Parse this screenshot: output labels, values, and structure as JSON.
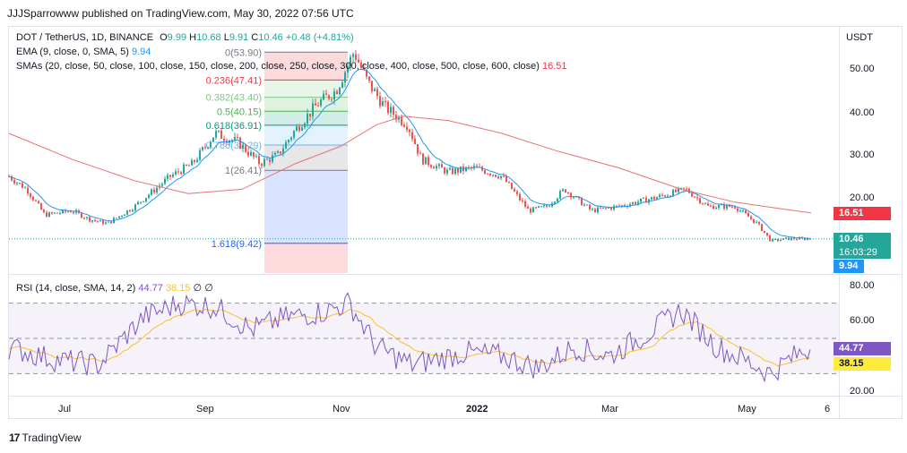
{
  "header": {
    "title": "JJJSparrowww published on TradingView.com, May 30, 2022 07:56 UTC"
  },
  "legend": {
    "symbol": "DOT / TetherUS, 1D, BINANCE",
    "o_label": "O",
    "o": "9.99",
    "h_label": "H",
    "h": "10.68",
    "l_label": "L",
    "l": "9.91",
    "c_label": "C",
    "c": "10.46",
    "chg": "+0.48 (+4.81%)",
    "ema_label": "EMA (9, close, 0, SMA, 5)",
    "ema_val": "9.94",
    "sma_label": "SMAs (20, close, 50, close, 100, close, 150, close, 200, close, 250, close, 300, close, 400, close, 500, close, 600, close)",
    "sma_val": "16.51",
    "rsi_label": "RSI (14, close, SMA, 14, 2)",
    "rsi_val": "44.77",
    "rsi_sma": "38.15",
    "rsi_z1": "∅",
    "rsi_z2": "∅"
  },
  "axis": {
    "currency": "USDT",
    "price_ticks": [
      "50.00",
      "40.00",
      "30.00",
      "20.00"
    ],
    "rsi_ticks": [
      "80.00",
      "60.00",
      "20.00"
    ],
    "time_ticks": [
      "Jul",
      "Sep",
      "Nov",
      "2022",
      "Mar",
      "May",
      "6"
    ]
  },
  "tags": {
    "sma": "16.51",
    "price": "10.46",
    "countdown": "16:03:29",
    "ema": "9.94",
    "rsi": "44.77",
    "rsi_sma": "38.15"
  },
  "fib_levels": [
    {
      "label": "0(53.90)",
      "value": 53.9,
      "color": "#787b86"
    },
    {
      "label": "0.236(47.41)",
      "value": 47.41,
      "color": "#f23645"
    },
    {
      "label": "0.382(43.40)",
      "value": 43.4,
      "color": "#81c784"
    },
    {
      "label": "0.5(40.15)",
      "value": 40.15,
      "color": "#4caf50"
    },
    {
      "label": "0.618(36.91)",
      "value": 36.91,
      "color": "#089981"
    },
    {
      "label": "0.786(32.29)",
      "value": 32.29,
      "color": "#64b5f6"
    },
    {
      "label": "1(26.41)",
      "value": 26.41,
      "color": "#787b86"
    },
    {
      "label": "1.618(9.42)",
      "value": 9.42,
      "color": "#2962ff"
    }
  ],
  "colors": {
    "up": "#26a69a",
    "down": "#ef5350",
    "ema": "#2196f3",
    "sma": "#e57373",
    "rsi": "#7e57c2",
    "rsi_sma": "#fbc02d",
    "price_tag": "#26a69a",
    "sma_tag": "#f23645",
    "ema_tag": "#2196f3"
  },
  "chart_data": {
    "type": "candlestick",
    "series": [
      {
        "name": "DOT / TetherUS",
        "x": [
          "Jul",
          "Sep",
          "Nov",
          "2022",
          "Mar",
          "May"
        ],
        "values": [
          15,
          22,
          44,
          28,
          19,
          10.46
        ]
      },
      {
        "name": "EMA",
        "values": [
          9.94
        ]
      },
      {
        "name": "SMAs",
        "values": [
          16.51
        ]
      },
      {
        "name": "RSI",
        "values": [
          44.77
        ]
      }
    ],
    "ylim": [
      5,
      58
    ],
    "rsi_ylim": [
      20,
      80
    ]
  },
  "footer": {
    "brand": "TradingView"
  }
}
